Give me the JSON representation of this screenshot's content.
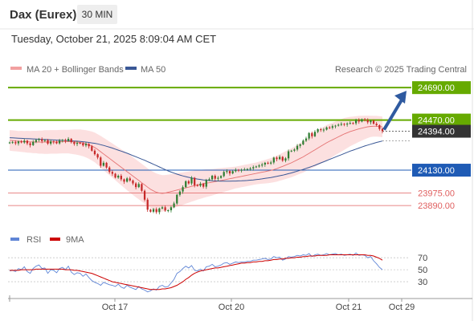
{
  "header": {
    "symbol": "Dax (Eurex)",
    "timeframe": "30 MIN"
  },
  "datetime": "Tuesday, October 21, 2025 8:09:04 AM CET",
  "legend": {
    "bb": "MA 20 + Bollinger Bands",
    "ma50": "MA 50",
    "credit": "Research © 2025 Trading Central"
  },
  "rsi_legend": {
    "rsi": "RSI",
    "ma9": "9MA"
  },
  "colors": {
    "up": "#2e7d32",
    "down": "#c62828",
    "resistance": "#66aa00",
    "pivot": "#1f5bb5",
    "support": "#e06060",
    "ma50": "#3a5896",
    "ma20": "#e57373",
    "band": "#fbd5d5",
    "rsi": "#5f85d6",
    "rsi_ma": "#cc0000",
    "current": "#333333",
    "arrow": "#2f5aa0"
  },
  "chart_data": [
    {
      "type": "candlestick",
      "title": "Dax (Eurex)",
      "interval": "30 MIN",
      "x_ticks": [
        "Oct 17",
        "Oct 20",
        "Oct 21",
        "Oct 29"
      ],
      "ylim": [
        23760,
        24740
      ],
      "levels": [
        {
          "value": 24690.0,
          "label": "24690.00",
          "kind": "resistance"
        },
        {
          "value": 24470.0,
          "label": "24470.00",
          "kind": "resistance"
        },
        {
          "value": 24130.0,
          "label": "24130.00",
          "kind": "pivot"
        },
        {
          "value": 23975.0,
          "label": "23975.00",
          "kind": "support"
        },
        {
          "value": 23890.0,
          "label": "23890.00",
          "kind": "support"
        }
      ],
      "current_price": {
        "value": 24394.0,
        "label": "24394.00"
      },
      "series": [
        {
          "name": "Dax (Eurex)",
          "close": [
            24318,
            24320,
            24312,
            24325,
            24318,
            24330,
            24312,
            24300,
            24322,
            24335,
            24340,
            24328,
            24333,
            24310,
            24325,
            24322,
            24312,
            24330,
            24335,
            24328,
            24342,
            24320,
            24308,
            24315,
            24312,
            24298,
            24308,
            24292,
            24262,
            24238,
            24216,
            24160,
            24180,
            24148,
            24118,
            24106,
            24080,
            24092,
            24068,
            24052,
            24074,
            24060,
            24040,
            24015,
            24036,
            23990,
            23930,
            23862,
            23848,
            23865,
            23845,
            23870,
            23878,
            23856,
            23858,
            23878,
            23904,
            23963,
            23985,
            24015,
            24055,
            24040,
            24078,
            24028,
            24024,
            24038,
            24018,
            24062,
            24068,
            24092,
            24072,
            24078,
            24090,
            24118,
            24124,
            24108,
            24123,
            24132,
            24129,
            24132,
            24135,
            24138,
            24142,
            24150,
            24155,
            24162,
            24168,
            24180,
            24175,
            24182,
            24215,
            24205,
            24220,
            24195,
            24210,
            24258,
            24262,
            24270,
            24295,
            24305,
            24330,
            24345,
            24382,
            24360,
            24390,
            24408,
            24402,
            24405,
            24420,
            24418,
            24428,
            24432,
            24438,
            24444,
            24440,
            24446,
            24450,
            24448,
            24470,
            24460,
            24475,
            24470,
            24455,
            24465,
            24445,
            24435,
            24410,
            24395
          ],
          "ma20": [
            24332,
            24330,
            24328,
            24326,
            24325,
            24324,
            24323,
            24322,
            24321,
            24321,
            24320,
            24320,
            24321,
            24321,
            24322,
            24322,
            24322,
            24323,
            24324,
            24324,
            24324,
            24323,
            24322,
            24320,
            24318,
            24314,
            24309,
            24302,
            24294,
            24284,
            24270,
            24255,
            24240,
            24225,
            24210,
            24195,
            24180,
            24165,
            24150,
            24135,
            24120,
            24105,
            24090,
            24075,
            24060,
            24045,
            24030,
            24015,
            24000,
            23990,
            23980,
            23975,
            23972,
            23975,
            23980,
            23985,
            23990,
            23995,
            24000,
            24005,
            24010,
            24015,
            24020,
            24025,
            24030,
            24034,
            24038,
            24042,
            24045,
            24048,
            24052,
            24056,
            24060,
            24064,
            24068,
            24072,
            24076,
            24080,
            24084,
            24088,
            24092,
            24096,
            24100,
            24104,
            24108,
            24112,
            24116,
            24120,
            24124,
            24128,
            24134,
            24140,
            24148,
            24156,
            24164,
            24172,
            24180,
            24190,
            24200,
            24210,
            24220,
            24232,
            24244,
            24256,
            24268,
            24280,
            24292,
            24304,
            24316,
            24326,
            24336,
            24346,
            24356,
            24366,
            24376,
            24384,
            24392,
            24398,
            24404,
            24410,
            24415,
            24420,
            24424,
            24427,
            24428,
            24428,
            24426,
            24424
          ],
          "ma50": [
            24350,
            24349,
            24348,
            24347,
            24346,
            24345,
            24344,
            24343,
            24342,
            24341,
            24340,
            24339,
            24338,
            24337,
            24336,
            24335,
            24334,
            24333,
            24332,
            24331,
            24330,
            24329,
            24328,
            24327,
            24325,
            24323,
            24321,
            24318,
            24315,
            24312,
            24308,
            24303,
            24298,
            24292,
            24286,
            24280,
            24273,
            24266,
            24259,
            24252,
            24245,
            24237,
            24229,
            24221,
            24213,
            24205,
            24197,
            24188,
            24179,
            24170,
            24161,
            24152,
            24143,
            24134,
            24125,
            24117,
            24110,
            24103,
            24097,
            24091,
            24086,
            24081,
            24077,
            24073,
            24070,
            24067,
            24064,
            24062,
            24060,
            24058,
            24057,
            24056,
            24055,
            24055,
            24055,
            24055,
            24056,
            24056,
            24057,
            24058,
            24059,
            24060,
            24062,
            24064,
            24066,
            24068,
            24071,
            24074,
            24077,
            24080,
            24084,
            24088,
            24092,
            24096,
            24101,
            24106,
            24111,
            24117,
            24123,
            24129,
            24135,
            24142,
            24149,
            24156,
            24163,
            24171,
            24179,
            24187,
            24195,
            24203,
            24211,
            24219,
            24227,
            24235,
            24243,
            24251,
            24259,
            24266,
            24273,
            24280,
            24287,
            24294,
            24300,
            24306,
            24312,
            24318,
            24323,
            24328
          ],
          "bb_width": [
            70,
            70,
            70,
            70,
            72,
            72,
            74,
            74,
            76,
            76,
            78,
            78,
            80,
            80,
            80,
            80,
            80,
            80,
            80,
            80,
            80,
            82,
            84,
            86,
            88,
            90,
            92,
            95,
            98,
            101,
            104,
            107,
            110,
            112,
            114,
            116,
            118,
            120,
            122,
            124,
            126,
            128,
            128,
            128,
            128,
            128,
            128,
            128,
            128,
            128,
            128,
            126,
            124,
            122,
            120,
            118,
            116,
            114,
            112,
            110,
            108,
            106,
            104,
            102,
            100,
            98,
            96,
            94,
            92,
            90,
            88,
            86,
            84,
            82,
            80,
            78,
            76,
            74,
            74,
            74,
            74,
            74,
            74,
            74,
            74,
            76,
            78,
            80,
            82,
            84,
            86,
            88,
            90,
            92,
            94,
            96,
            98,
            100,
            102,
            104,
            106,
            108,
            110,
            112,
            114,
            116,
            118,
            120,
            120,
            118,
            116,
            114,
            112,
            110,
            108,
            104,
            100,
            96,
            92,
            88,
            84,
            80,
            76,
            72,
            70,
            70,
            70,
            70
          ]
        }
      ]
    },
    {
      "type": "line",
      "title": "RSI",
      "y_ticks": [
        70,
        50,
        30
      ],
      "ylim": [
        10,
        85
      ],
      "series": [
        {
          "name": "RSI",
          "values": [
            48,
            49,
            47,
            52,
            50,
            55,
            47,
            44,
            52,
            56,
            58,
            52,
            53,
            44,
            50,
            49,
            45,
            52,
            54,
            50,
            56,
            46,
            42,
            45,
            44,
            39,
            43,
            37,
            32,
            29,
            27,
            24,
            29,
            27,
            25,
            24,
            22,
            26,
            21,
            19,
            24,
            21,
            19,
            17,
            22,
            18,
            16,
            13,
            15,
            18,
            16,
            22,
            24,
            21,
            22,
            28,
            34,
            44,
            47,
            52,
            56,
            53,
            57,
            49,
            48,
            51,
            48,
            55,
            56,
            59,
            55,
            56,
            58,
            61,
            62,
            59,
            61,
            63,
            62,
            63,
            63,
            64,
            64,
            66,
            66,
            67,
            68,
            69,
            67,
            68,
            72,
            70,
            71,
            66,
            68,
            72,
            71,
            72,
            74,
            73,
            75,
            74,
            77,
            72,
            75,
            76,
            74,
            75,
            77,
            75,
            76,
            77,
            75,
            76,
            74,
            75,
            76,
            74,
            78,
            74,
            75,
            74,
            70,
            72,
            65,
            60,
            54,
            50
          ]
        },
        {
          "name": "9MA",
          "values": [
            49,
            49,
            49,
            49,
            50,
            50,
            50,
            50,
            50,
            51,
            51,
            51,
            51,
            51,
            51,
            51,
            51,
            51,
            51,
            50,
            50,
            50,
            49,
            49,
            48,
            47,
            46,
            45,
            44,
            42,
            40,
            38,
            36,
            34,
            32,
            30,
            29,
            28,
            27,
            26,
            25,
            24,
            23,
            22,
            21,
            20,
            19,
            18,
            17,
            17,
            17,
            17,
            18,
            18,
            19,
            20,
            22,
            24,
            27,
            30,
            34,
            37,
            41,
            44,
            46,
            48,
            49,
            50,
            51,
            52,
            53,
            53,
            54,
            55,
            56,
            57,
            58,
            59,
            60,
            61,
            61,
            62,
            62,
            63,
            63,
            64,
            64,
            65,
            65,
            66,
            67,
            67,
            68,
            68,
            69,
            69,
            70,
            70,
            71,
            71,
            72,
            72,
            73,
            73,
            73,
            74,
            74,
            74,
            74,
            75,
            75,
            75,
            75,
            75,
            75,
            75,
            75,
            75,
            75,
            75,
            75,
            75,
            74,
            74,
            73,
            71,
            69,
            66
          ]
        }
      ]
    }
  ]
}
